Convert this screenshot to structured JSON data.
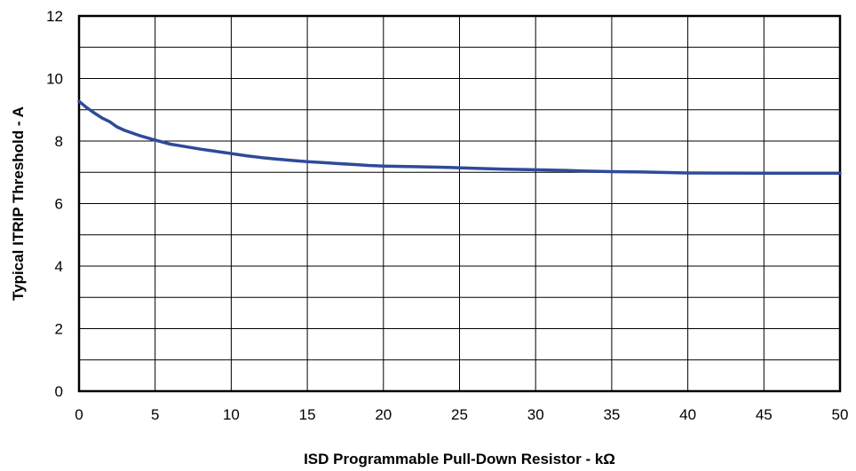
{
  "chart_data": {
    "type": "line",
    "title": "",
    "xlabel": "ISD Programmable Pull-Down Resistor - kΩ",
    "ylabel": "Typical ITRIP Threshold - A",
    "xlim": [
      0,
      50
    ],
    "ylim": [
      0,
      12
    ],
    "xticks": [
      0,
      5,
      10,
      15,
      20,
      25,
      30,
      35,
      40,
      45,
      50
    ],
    "yticks": [
      0,
      2,
      4,
      6,
      8,
      10,
      12
    ],
    "grid": true,
    "legend": "none",
    "series": [
      {
        "color": "#2e4a9a",
        "x": [
          0,
          0.5,
          1,
          1.5,
          2,
          2.5,
          3,
          4,
          5,
          6,
          7,
          8,
          9,
          10,
          11,
          12,
          13,
          14,
          15,
          16,
          17,
          18,
          19,
          20,
          22,
          24,
          26,
          28,
          30,
          32,
          33,
          35,
          37,
          38,
          40,
          45,
          50
        ],
        "y": [
          9.27,
          9.07,
          8.9,
          8.74,
          8.62,
          8.45,
          8.34,
          8.17,
          8.03,
          7.9,
          7.82,
          7.74,
          7.67,
          7.6,
          7.53,
          7.47,
          7.42,
          7.38,
          7.34,
          7.31,
          7.28,
          7.25,
          7.22,
          7.2,
          7.18,
          7.16,
          7.13,
          7.1,
          7.08,
          7.06,
          7.04,
          7.02,
          7.01,
          7.0,
          6.98,
          6.97,
          6.97
        ]
      }
    ]
  }
}
